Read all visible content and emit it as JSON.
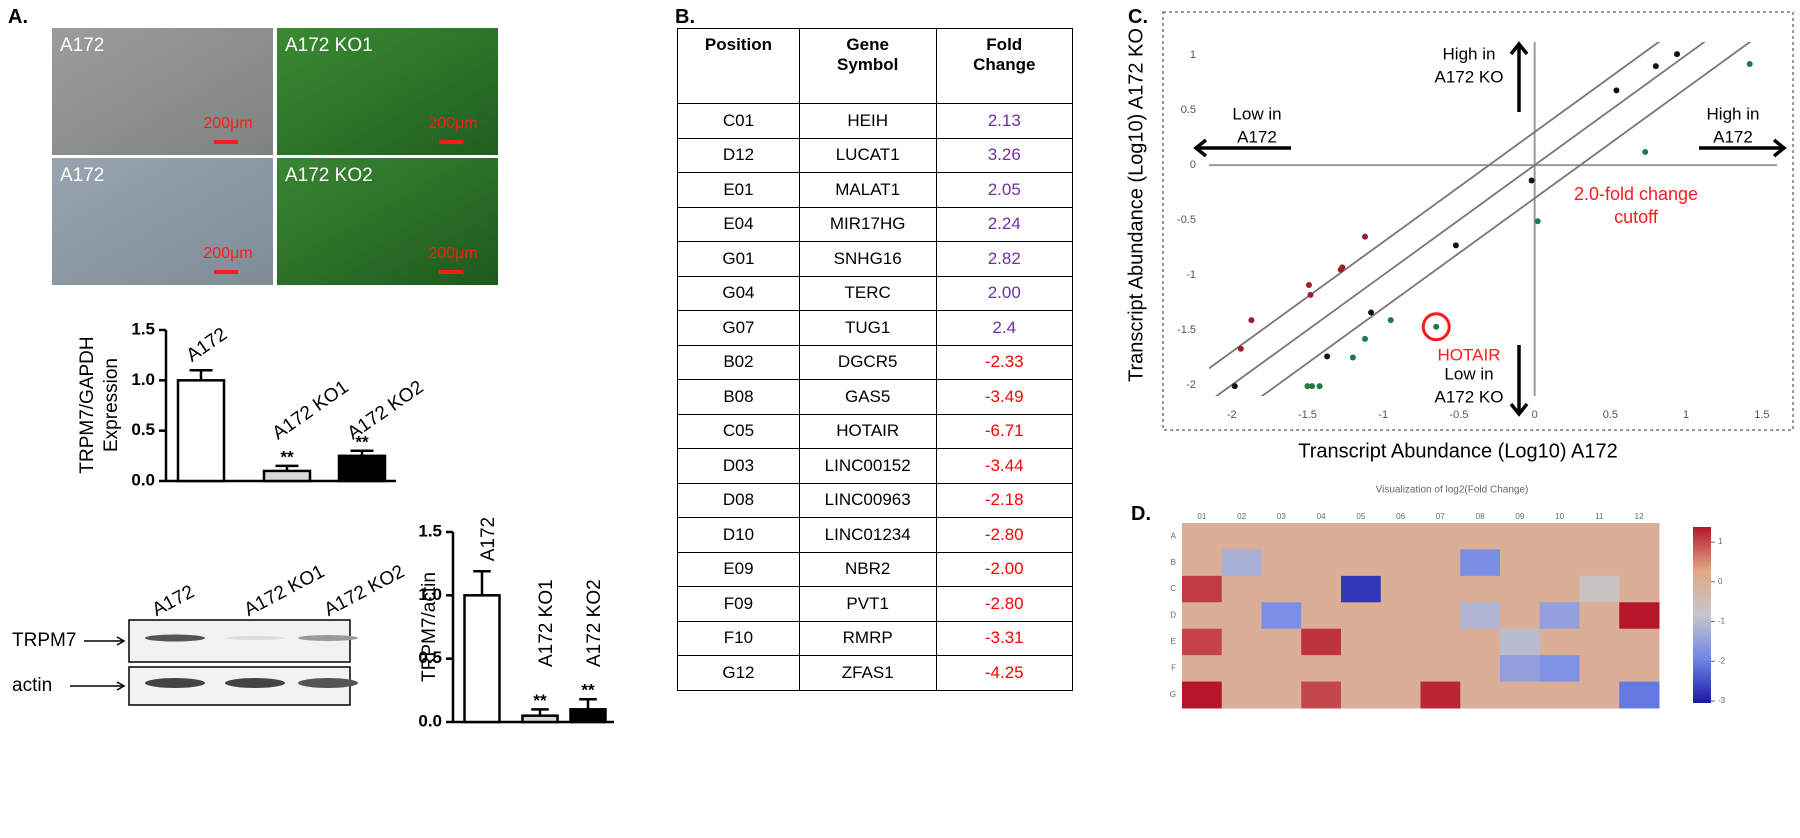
{
  "panel_a": {
    "label": "A.",
    "images": [
      {
        "label": "A172",
        "scale_bar": "200μm"
      },
      {
        "label": "A172 KO1",
        "scale_bar": "200μm"
      },
      {
        "label": "A172",
        "scale_bar": "200μm"
      },
      {
        "label": "A172 KO2",
        "scale_bar": "200μm"
      }
    ],
    "expression_chart": {
      "type": "bar",
      "y_label": [
        "TRPM7/GAPDH",
        "Expression"
      ],
      "categories": [
        "A172",
        "A172 KO1",
        "A172 KO2"
      ],
      "values": [
        1.0,
        0.1,
        0.25
      ],
      "errors": [
        0.1,
        0.05,
        0.05
      ],
      "significance": [
        null,
        "**",
        "**"
      ],
      "colors": [
        "#ffffff",
        "#d9d9d9",
        "#000000"
      ],
      "ylim": [
        0,
        1.5
      ],
      "yticks": [
        {
          "value": 0,
          "label": "0.0"
        },
        {
          "value": 0.5,
          "label": "0.5"
        },
        {
          "value": 1,
          "label": "1.0"
        },
        {
          "value": 1.5,
          "label": "1.5"
        }
      ]
    },
    "western_blot": {
      "lanes": [
        "A172",
        "A172 KO1",
        "A172 KO2"
      ],
      "rows": [
        "TRPM7",
        "actin"
      ]
    },
    "actin_chart": {
      "type": "bar",
      "y_label": [
        "TRPM7/actin"
      ],
      "categories": [
        "A172",
        "A172 KO1",
        "A172 KO2"
      ],
      "values": [
        1.0,
        0.05,
        0.1
      ],
      "errors": [
        0.19,
        0.05,
        0.08
      ],
      "significance": [
        null,
        "**",
        "**"
      ],
      "colors": [
        "#ffffff",
        "#d9d9d9",
        "#000000"
      ],
      "ylim": [
        0,
        1.5
      ],
      "yticks": [
        {
          "value": 0,
          "label": "0.0"
        },
        {
          "value": 0.5,
          "label": "0.5"
        },
        {
          "value": 1,
          "label": "1.0"
        },
        {
          "value": 1.5,
          "label": "1.5"
        }
      ]
    }
  },
  "panel_b": {
    "label": "B.",
    "table": {
      "header": [
        "Position",
        "Gene Symbol",
        "Fold Change"
      ],
      "rows": [
        [
          "C01",
          "HEIH",
          "2.13"
        ],
        [
          "D12",
          "LUCAT1",
          "3.26"
        ],
        [
          "E01",
          "MALAT1",
          "2.05"
        ],
        [
          "E04",
          "MIR17HG",
          "2.24"
        ],
        [
          "G01",
          "SNHG16",
          "2.82"
        ],
        [
          "G04",
          "TERC",
          "2.00"
        ],
        [
          "G07",
          "TUG1",
          "2.4"
        ],
        [
          "B02",
          "DGCR5",
          "-2.33"
        ],
        [
          "B08",
          "GAS5",
          "-3.49"
        ],
        [
          "C05",
          "HOTAIR",
          "-6.71"
        ],
        [
          "D03",
          "LINC00152",
          "-3.44"
        ],
        [
          "D08",
          "LINC00963",
          "-2.18"
        ],
        [
          "D10",
          "LINC01234",
          "-2.80"
        ],
        [
          "E09",
          "NBR2",
          "-2.00"
        ],
        [
          "F09",
          "PVT1",
          "-2.80"
        ],
        [
          "F10",
          "RMRP",
          "-3.31"
        ],
        [
          "G12",
          "ZFAS1",
          "-4.25"
        ]
      ],
      "fold_change_colors": {
        "up": "#7030a0",
        "down": "#ff0000"
      }
    }
  },
  "panel_c": {
    "label": "C.",
    "chart": {
      "type": "scatter",
      "x_label": "Transcript Abundance (Log10) A172",
      "y_label": "Transcript Abundance (Log10) A172 KO",
      "xlim": [
        -2.15,
        1.6
      ],
      "ylim": [
        -2.1,
        1.12
      ],
      "xticks": [
        -2,
        -1.5,
        -1,
        -0.5,
        0,
        0.5,
        1,
        1.5
      ],
      "yticks": [
        -2,
        -1.5,
        -1,
        -0.5,
        0,
        0.5,
        1
      ],
      "cutoff_lines": [
        -0.301,
        0,
        0.301
      ],
      "series": [
        {
          "color": "#111111",
          "x": [
            0.94,
            0.8,
            0.54,
            -0.02,
            -0.52,
            -1.08,
            -1.37,
            -1.98
          ],
          "y": [
            1.01,
            0.9,
            0.68,
            -0.14,
            -0.73,
            -1.34,
            -1.74,
            -2.01
          ]
        },
        {
          "color": "#9b1c2c",
          "x": [
            -1.94,
            -1.87,
            -1.48,
            -1.49,
            -1.28,
            -1.27,
            -1.12
          ],
          "y": [
            -1.67,
            -1.41,
            -1.18,
            -1.09,
            -0.95,
            -0.93,
            -0.65
          ]
        },
        {
          "color": "#1e7a46",
          "x": [
            1.42,
            0.73,
            0.02,
            -0.65,
            -0.95,
            -1.12,
            -1.2,
            -1.42,
            -1.47,
            -1.5
          ],
          "y": [
            0.92,
            0.12,
            -0.51,
            -1.47,
            -1.41,
            -1.58,
            -1.75,
            -2.01,
            -2.01,
            -2.01
          ]
        }
      ],
      "annotations": {
        "high_ko": [
          "High in",
          "A172 KO"
        ],
        "low_a172": [
          "Low in",
          "A172"
        ],
        "high_a172": [
          "High in",
          "A172"
        ],
        "low_ko": [
          "Low in",
          "A172 KO"
        ],
        "cutoff": [
          "2.0-fold change",
          "cutoff"
        ],
        "highlight": "HOTAIR"
      }
    }
  },
  "panel_d": {
    "label": "D.",
    "chart": {
      "type": "heatmap",
      "title": "Visualization of log2(Fold Change)",
      "rows": [
        "A",
        "B",
        "C",
        "D",
        "E",
        "F",
        "G"
      ],
      "columns": [
        "01",
        "02",
        "03",
        "04",
        "05",
        "06",
        "07",
        "08",
        "09",
        "10",
        "11",
        "12"
      ],
      "values": [
        [
          0,
          0,
          0,
          0,
          0,
          0,
          0,
          0,
          0,
          0,
          0,
          0
        ],
        [
          0,
          -1.22,
          0,
          0,
          0,
          0,
          0,
          -1.8,
          0,
          0,
          0,
          0
        ],
        [
          1.09,
          0,
          0,
          0,
          -2.75,
          0,
          0,
          0,
          0,
          0,
          -0.7,
          0
        ],
        [
          0,
          0,
          -1.78,
          0,
          0,
          0,
          0,
          -1.12,
          0,
          -1.49,
          0,
          1.7
        ],
        [
          1.04,
          0,
          0,
          1.16,
          0,
          0,
          0,
          0,
          -1.0,
          0,
          0,
          0
        ],
        [
          0,
          0,
          0,
          0,
          0,
          0,
          0,
          0,
          -1.49,
          -1.73,
          0,
          0
        ],
        [
          1.5,
          0,
          0,
          1.0,
          0,
          0,
          1.26,
          0,
          0,
          0,
          0,
          -2.09
        ]
      ],
      "clim": [
        -3.05,
        1.38
      ],
      "colorbar_ticks": [
        1,
        0,
        -1,
        -2,
        -3
      ],
      "colormap": [
        "#1a1aa6",
        "#6f86e8",
        "#c6c6cc",
        "#e2a886",
        "#b5162a"
      ]
    }
  }
}
